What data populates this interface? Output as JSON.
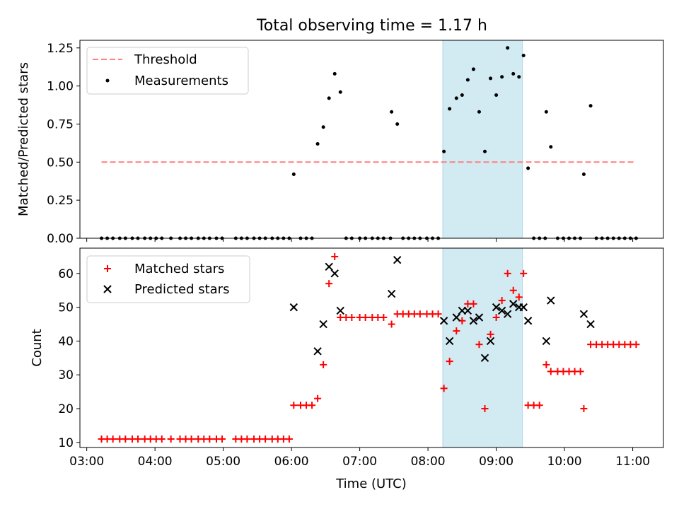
{
  "title": "Total observing time = 1.17 h",
  "chart_data": [
    {
      "type": "scatter",
      "ylabel": "Matched/Predicted stars",
      "ylim": [
        0,
        1.3
      ],
      "xlim_hours": [
        2.9,
        11.45
      ],
      "yticks": [
        0.0,
        0.25,
        0.5,
        0.75,
        1.0,
        1.25
      ],
      "ytick_labels": [
        "0.00",
        "0.25",
        "0.50",
        "0.75",
        "1.00",
        "1.25"
      ],
      "legend_position": "top-left",
      "highlight_span": {
        "start": "08:13",
        "end": "09:23",
        "color": "#add8e6"
      },
      "threshold": {
        "name": "Threshold",
        "value": 0.5,
        "x_start": "03:13",
        "x_end": "11:03",
        "color": "#ff7f7f",
        "style": "dashed"
      },
      "series": [
        {
          "name": "Measurements",
          "color": "#000000",
          "marker": "dot",
          "points": [
            [
              "03:13",
              0
            ],
            [
              "03:18",
              0
            ],
            [
              "03:23",
              0
            ],
            [
              "03:29",
              0
            ],
            [
              "03:34",
              0
            ],
            [
              "03:40",
              0
            ],
            [
              "03:45",
              0
            ],
            [
              "03:51",
              0
            ],
            [
              "03:56",
              0
            ],
            [
              "04:01",
              0
            ],
            [
              "04:06",
              0
            ],
            [
              "04:14",
              0
            ],
            [
              "04:22",
              0
            ],
            [
              "04:27",
              0
            ],
            [
              "04:32",
              0
            ],
            [
              "04:38",
              0
            ],
            [
              "04:43",
              0
            ],
            [
              "04:48",
              0
            ],
            [
              "04:54",
              0
            ],
            [
              "04:59",
              0
            ],
            [
              "05:11",
              0
            ],
            [
              "05:16",
              0
            ],
            [
              "05:21",
              0
            ],
            [
              "05:27",
              0
            ],
            [
              "05:32",
              0
            ],
            [
              "05:37",
              0
            ],
            [
              "05:43",
              0
            ],
            [
              "05:48",
              0
            ],
            [
              "05:53",
              0
            ],
            [
              "05:58",
              0
            ],
            [
              "06:02",
              0.42
            ],
            [
              "06:08",
              0
            ],
            [
              "06:13",
              0
            ],
            [
              "06:18",
              0
            ],
            [
              "06:23",
              0.62
            ],
            [
              "06:28",
              0.73
            ],
            [
              "06:33",
              0.92
            ],
            [
              "06:38",
              1.08
            ],
            [
              "06:43",
              0.96
            ],
            [
              "06:48",
              0
            ],
            [
              "06:53",
              0
            ],
            [
              "07:00",
              0
            ],
            [
              "07:05",
              0
            ],
            [
              "07:11",
              0
            ],
            [
              "07:16",
              0
            ],
            [
              "07:21",
              0
            ],
            [
              "07:27",
              0
            ],
            [
              "07:28",
              0.83
            ],
            [
              "07:33",
              0.75
            ],
            [
              "07:38",
              0
            ],
            [
              "07:43",
              0
            ],
            [
              "07:48",
              0
            ],
            [
              "07:53",
              0
            ],
            [
              "07:59",
              0
            ],
            [
              "08:04",
              0
            ],
            [
              "08:09",
              0
            ],
            [
              "08:14",
              0.57
            ],
            [
              "08:19",
              0.85
            ],
            [
              "08:25",
              0.92
            ],
            [
              "08:30",
              0.94
            ],
            [
              "08:35",
              1.04
            ],
            [
              "08:40",
              1.11
            ],
            [
              "08:45",
              0.83
            ],
            [
              "08:50",
              0.57
            ],
            [
              "08:55",
              1.05
            ],
            [
              "09:00",
              0.94
            ],
            [
              "09:05",
              1.06
            ],
            [
              "09:10",
              1.25
            ],
            [
              "09:15",
              1.08
            ],
            [
              "09:20",
              1.06
            ],
            [
              "09:24",
              1.2
            ],
            [
              "09:28",
              0.46
            ],
            [
              "09:33",
              0
            ],
            [
              "09:38",
              0
            ],
            [
              "09:43",
              0
            ],
            [
              "09:54",
              0
            ],
            [
              "09:59",
              0
            ],
            [
              "10:04",
              0
            ],
            [
              "10:09",
              0
            ],
            [
              "10:14",
              0
            ],
            [
              "09:44",
              0.83
            ],
            [
              "09:48",
              0.6
            ],
            [
              "10:17",
              0.42
            ],
            [
              "10:23",
              0.87
            ],
            [
              "10:28",
              0
            ],
            [
              "10:33",
              0
            ],
            [
              "10:38",
              0
            ],
            [
              "10:43",
              0
            ],
            [
              "10:48",
              0
            ],
            [
              "10:53",
              0
            ],
            [
              "10:58",
              0
            ],
            [
              "11:03",
              0
            ]
          ]
        }
      ]
    },
    {
      "type": "scatter",
      "xlabel": "Time (UTC)",
      "ylabel": "Count",
      "ylim": [
        8.5,
        67.5
      ],
      "xlim_hours": [
        2.9,
        11.45
      ],
      "yticks": [
        10,
        20,
        30,
        40,
        50,
        60
      ],
      "ytick_labels": [
        "10",
        "20",
        "30",
        "40",
        "50",
        "60"
      ],
      "xticks": [
        "03:00",
        "04:00",
        "05:00",
        "06:00",
        "07:00",
        "08:00",
        "09:00",
        "10:00",
        "11:00"
      ],
      "legend_position": "top-left",
      "highlight_span": {
        "start": "08:13",
        "end": "09:23",
        "color": "#add8e6"
      },
      "series": [
        {
          "name": "Matched stars",
          "color": "#ff0000",
          "marker": "plus",
          "points": [
            [
              "03:13",
              11
            ],
            [
              "03:18",
              11
            ],
            [
              "03:23",
              11
            ],
            [
              "03:29",
              11
            ],
            [
              "03:34",
              11
            ],
            [
              "03:40",
              11
            ],
            [
              "03:45",
              11
            ],
            [
              "03:51",
              11
            ],
            [
              "03:56",
              11
            ],
            [
              "04:01",
              11
            ],
            [
              "04:06",
              11
            ],
            [
              "04:14",
              11
            ],
            [
              "04:22",
              11
            ],
            [
              "04:27",
              11
            ],
            [
              "04:32",
              11
            ],
            [
              "04:38",
              11
            ],
            [
              "04:43",
              11
            ],
            [
              "04:48",
              11
            ],
            [
              "04:54",
              11
            ],
            [
              "04:59",
              11
            ],
            [
              "05:11",
              11
            ],
            [
              "05:16",
              11
            ],
            [
              "05:21",
              11
            ],
            [
              "05:27",
              11
            ],
            [
              "05:32",
              11
            ],
            [
              "05:37",
              11
            ],
            [
              "05:43",
              11
            ],
            [
              "05:48",
              11
            ],
            [
              "05:53",
              11
            ],
            [
              "05:58",
              11
            ],
            [
              "06:02",
              21
            ],
            [
              "06:08",
              21
            ],
            [
              "06:13",
              21
            ],
            [
              "06:18",
              21
            ],
            [
              "06:23",
              23
            ],
            [
              "06:28",
              33
            ],
            [
              "06:33",
              57
            ],
            [
              "06:38",
              65
            ],
            [
              "06:43",
              47
            ],
            [
              "06:48",
              47
            ],
            [
              "06:53",
              47
            ],
            [
              "07:00",
              47
            ],
            [
              "07:05",
              47
            ],
            [
              "07:11",
              47
            ],
            [
              "07:16",
              47
            ],
            [
              "07:21",
              47
            ],
            [
              "07:28",
              45
            ],
            [
              "07:33",
              48
            ],
            [
              "07:38",
              48
            ],
            [
              "07:43",
              48
            ],
            [
              "07:48",
              48
            ],
            [
              "07:53",
              48
            ],
            [
              "07:59",
              48
            ],
            [
              "08:04",
              48
            ],
            [
              "08:09",
              48
            ],
            [
              "08:14",
              26
            ],
            [
              "08:19",
              34
            ],
            [
              "08:25",
              43
            ],
            [
              "08:30",
              46
            ],
            [
              "08:35",
              51
            ],
            [
              "08:40",
              51
            ],
            [
              "08:45",
              39
            ],
            [
              "08:50",
              20
            ],
            [
              "08:55",
              42
            ],
            [
              "09:00",
              47
            ],
            [
              "09:05",
              52
            ],
            [
              "09:10",
              60
            ],
            [
              "09:15",
              55
            ],
            [
              "09:20",
              53
            ],
            [
              "09:24",
              60
            ],
            [
              "09:28",
              21
            ],
            [
              "09:33",
              21
            ],
            [
              "09:38",
              21
            ],
            [
              "09:44",
              33
            ],
            [
              "09:48",
              31
            ],
            [
              "09:54",
              31
            ],
            [
              "09:59",
              31
            ],
            [
              "10:04",
              31
            ],
            [
              "10:09",
              31
            ],
            [
              "10:14",
              31
            ],
            [
              "10:17",
              20
            ],
            [
              "10:23",
              39
            ],
            [
              "10:28",
              39
            ],
            [
              "10:33",
              39
            ],
            [
              "10:38",
              39
            ],
            [
              "10:43",
              39
            ],
            [
              "10:48",
              39
            ],
            [
              "10:53",
              39
            ],
            [
              "10:58",
              39
            ],
            [
              "11:03",
              39
            ]
          ]
        },
        {
          "name": "Predicted stars",
          "color": "#000000",
          "marker": "x",
          "points": [
            [
              "06:02",
              50
            ],
            [
              "06:23",
              37
            ],
            [
              "06:28",
              45
            ],
            [
              "06:33",
              62
            ],
            [
              "06:38",
              60
            ],
            [
              "06:43",
              49
            ],
            [
              "07:28",
              54
            ],
            [
              "07:33",
              64
            ],
            [
              "08:14",
              46
            ],
            [
              "08:19",
              40
            ],
            [
              "08:25",
              47
            ],
            [
              "08:30",
              49
            ],
            [
              "08:35",
              49
            ],
            [
              "08:40",
              46
            ],
            [
              "08:45",
              47
            ],
            [
              "08:50",
              35
            ],
            [
              "08:55",
              40
            ],
            [
              "09:00",
              50
            ],
            [
              "09:05",
              49
            ],
            [
              "09:10",
              48
            ],
            [
              "09:15",
              51
            ],
            [
              "09:20",
              50
            ],
            [
              "09:24",
              50
            ],
            [
              "09:28",
              46
            ],
            [
              "09:44",
              40
            ],
            [
              "09:48",
              52
            ],
            [
              "10:17",
              48
            ],
            [
              "10:23",
              45
            ]
          ]
        }
      ]
    }
  ]
}
